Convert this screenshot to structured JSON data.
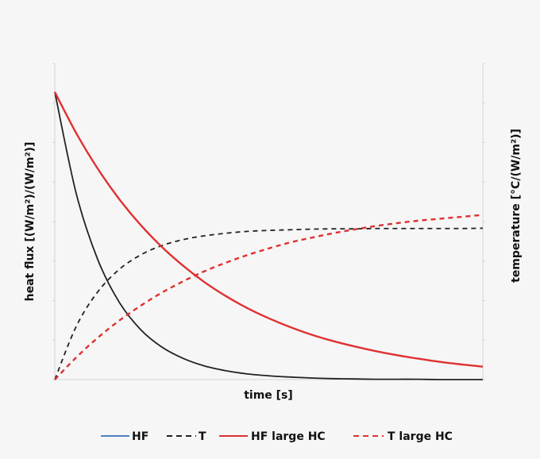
{
  "chart_data": {
    "type": "line",
    "title": "",
    "xlabel": "time [s]",
    "ylabel_left": "heat flux [(W/m²)/(W/m²)]",
    "ylabel_right": "temperature [°C/(W/m²)]",
    "x_range": [
      0,
      10
    ],
    "y_range": [
      0,
      1
    ],
    "grid": false,
    "tick_labels_visible": false,
    "legend_position": "bottom",
    "x": [
      0,
      0.5,
      1,
      1.5,
      2,
      2.5,
      3,
      3.5,
      4,
      4.5,
      5,
      5.5,
      6,
      6.5,
      7,
      7.5,
      8,
      8.5,
      9,
      9.5,
      10
    ],
    "series": [
      {
        "name": "HF",
        "color": "#222222",
        "dash": "solid",
        "legend_color": "#4f81bd",
        "values": [
          0.91,
          0.589,
          0.381,
          0.246,
          0.159,
          0.103,
          0.067,
          0.043,
          0.028,
          0.018,
          0.012,
          0.008,
          0.005,
          0.003,
          0.002,
          0.001,
          0.001,
          0.001,
          0.0,
          0.0,
          0.0
        ]
      },
      {
        "name": "T",
        "color": "#222222",
        "dash": "dashed",
        "values": [
          0.0,
          0.168,
          0.277,
          0.348,
          0.394,
          0.424,
          0.443,
          0.455,
          0.463,
          0.469,
          0.472,
          0.474,
          0.476,
          0.477,
          0.477,
          0.478,
          0.478,
          0.478,
          0.478,
          0.478,
          0.479
        ]
      },
      {
        "name": "HF large HC",
        "color": "#e03030",
        "dash": "solid",
        "values": [
          0.91,
          0.78,
          0.668,
          0.572,
          0.49,
          0.42,
          0.36,
          0.308,
          0.264,
          0.226,
          0.194,
          0.166,
          0.142,
          0.122,
          0.105,
          0.09,
          0.077,
          0.066,
          0.056,
          0.048,
          0.041
        ]
      },
      {
        "name": "T large HC",
        "color": "#e03030",
        "dash": "dashed",
        "values": [
          0.0,
          0.07,
          0.132,
          0.186,
          0.233,
          0.275,
          0.311,
          0.343,
          0.37,
          0.394,
          0.415,
          0.434,
          0.449,
          0.463,
          0.475,
          0.486,
          0.495,
          0.503,
          0.509,
          0.515,
          0.521
        ]
      }
    ]
  }
}
